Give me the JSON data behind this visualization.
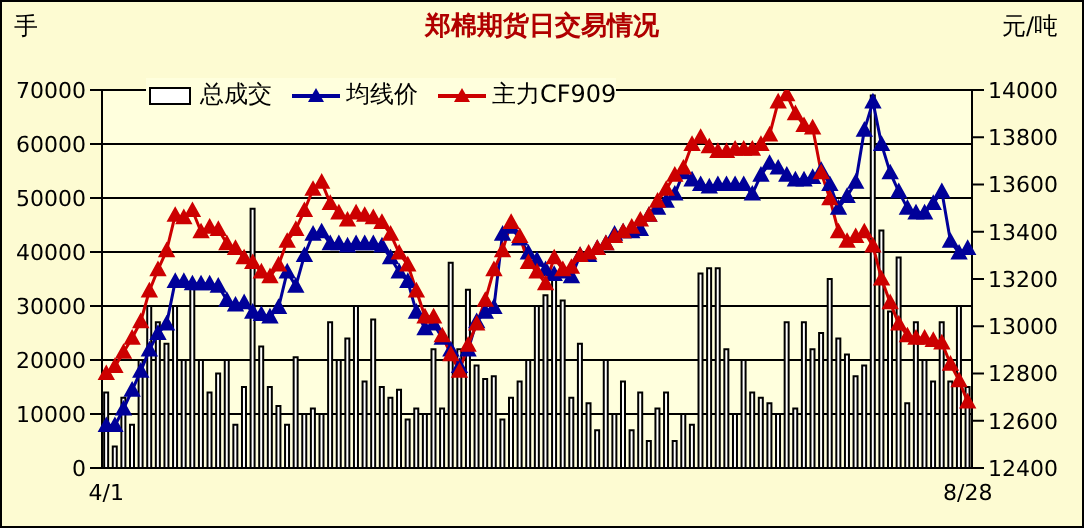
{
  "chart_data": {
    "type": "bar",
    "title": "郑棉期货日交易情况",
    "ylabel": "手",
    "y2label": "元/吨",
    "categories": [
      "4/1",
      null,
      null,
      null,
      null,
      null,
      null,
      null,
      null,
      null,
      null,
      null,
      null,
      null,
      null,
      null,
      null,
      null,
      null,
      null,
      null,
      null,
      null,
      null,
      null,
      null,
      null,
      null,
      null,
      null,
      null,
      null,
      null,
      null,
      null,
      null,
      null,
      null,
      null,
      null,
      null,
      null,
      null,
      null,
      null,
      null,
      null,
      null,
      null,
      null,
      null,
      null,
      null,
      null,
      null,
      null,
      null,
      null,
      null,
      null,
      null,
      null,
      null,
      null,
      null,
      null,
      null,
      null,
      null,
      null,
      null,
      null,
      null,
      null,
      null,
      null,
      null,
      null,
      null,
      null,
      null,
      null,
      null,
      null,
      null,
      null,
      null,
      null,
      null,
      null,
      null,
      null,
      null,
      null,
      null,
      null,
      null,
      null,
      null,
      null,
      "8/28"
    ],
    "series": [
      {
        "name": "总成交",
        "color": "#ffffff",
        "values": [
          14000,
          4000,
          13000,
          8000,
          20000,
          30000,
          27000,
          23000,
          30000,
          20000,
          34000,
          20000,
          14000,
          17500,
          20000,
          8000,
          15000,
          48000,
          22500,
          15000,
          11500,
          8000,
          20500,
          10000,
          11000,
          10000,
          27000,
          20000,
          24000,
          30000,
          16000,
          27500,
          15000,
          13000,
          14500,
          9000,
          11000,
          10000,
          22000,
          11000,
          38000,
          22000,
          33000,
          19000,
          16500,
          17000,
          9000,
          13000,
          16000,
          20000,
          30000,
          32000,
          35000,
          31000,
          13000,
          23000,
          12000,
          7000,
          20000,
          10000,
          16000,
          7000,
          14000,
          5000,
          11000,
          14000,
          5000,
          10000,
          8000,
          36000,
          37000,
          37000,
          22000,
          10000,
          20000,
          14000,
          13000,
          12000,
          10000,
          27000,
          11000,
          27000,
          22000,
          25000,
          35000,
          24000,
          21000,
          17000,
          19000,
          69000,
          44000,
          29000,
          39000,
          12000,
          27000,
          20000,
          16000,
          27000,
          16000,
          30000,
          15000
        ]
      },
      {
        "name": "均线价",
        "type": "line",
        "axis": "y2",
        "color": "#000099",
        "values": [
          12580,
          12580,
          12650,
          12730,
          12810,
          12900,
          12970,
          13010,
          13190,
          13190,
          13180,
          13180,
          13180,
          13170,
          13110,
          13090,
          13100,
          13060,
          13050,
          13040,
          13080,
          13230,
          13170,
          13300,
          13390,
          13400,
          13350,
          13350,
          13340,
          13350,
          13350,
          13350,
          13340,
          13290,
          13230,
          13190,
          13060,
          12990,
          13010,
          12950,
          12900,
          12830,
          12900,
          13020,
          13060,
          13080,
          13390,
          13420,
          13370,
          13310,
          13280,
          13240,
          13220,
          13230,
          13210,
          13300,
          13300,
          13330,
          13350,
          13390,
          13400,
          13400,
          13410,
          13470,
          13500,
          13530,
          13560,
          13650,
          13620,
          13600,
          13590,
          13600,
          13600,
          13600,
          13600,
          13560,
          13640,
          13690,
          13670,
          13640,
          13620,
          13620,
          13630,
          13660,
          13600,
          13500,
          13550,
          13610,
          13830,
          13950,
          13770,
          13650,
          13570,
          13500,
          13480,
          13480,
          13520,
          13570,
          13360,
          13310,
          13330
        ]
      },
      {
        "name": "主力CF909",
        "type": "line",
        "axis": "y2",
        "color": "#cc0000",
        "values": [
          12800,
          12830,
          12890,
          12950,
          13020,
          13150,
          13240,
          13320,
          13470,
          13460,
          13490,
          13400,
          13420,
          13410,
          13350,
          13330,
          13290,
          13270,
          13230,
          13210,
          13260,
          13360,
          13410,
          13490,
          13580,
          13610,
          13520,
          13480,
          13450,
          13480,
          13470,
          13460,
          13440,
          13390,
          13310,
          13260,
          13150,
          13040,
          13040,
          12960,
          12880,
          12810,
          12920,
          13010,
          13110,
          13240,
          13320,
          13440,
          13380,
          13270,
          13230,
          13180,
          13290,
          13240,
          13250,
          13300,
          13310,
          13330,
          13350,
          13380,
          13400,
          13420,
          13450,
          13470,
          13530,
          13580,
          13640,
          13670,
          13770,
          13800,
          13760,
          13740,
          13740,
          13750,
          13750,
          13750,
          13770,
          13810,
          13950,
          13980,
          13900,
          13850,
          13840,
          13650,
          13540,
          13400,
          13360,
          13380,
          13400,
          13340,
          13200,
          13100,
          13010,
          12960,
          12950,
          12950,
          12940,
          12930,
          12840,
          12770,
          12680
        ]
      }
    ],
    "ylim": [
      0,
      70000
    ],
    "yticks": [
      0,
      10000,
      20000,
      30000,
      40000,
      50000,
      60000,
      70000
    ],
    "y2lim": [
      12400,
      14000
    ],
    "y2ticks": [
      12400,
      12600,
      12800,
      13000,
      13200,
      13400,
      13600,
      13800,
      14000
    ],
    "grid": "y",
    "legend": "top left",
    "marker": "triangle"
  }
}
